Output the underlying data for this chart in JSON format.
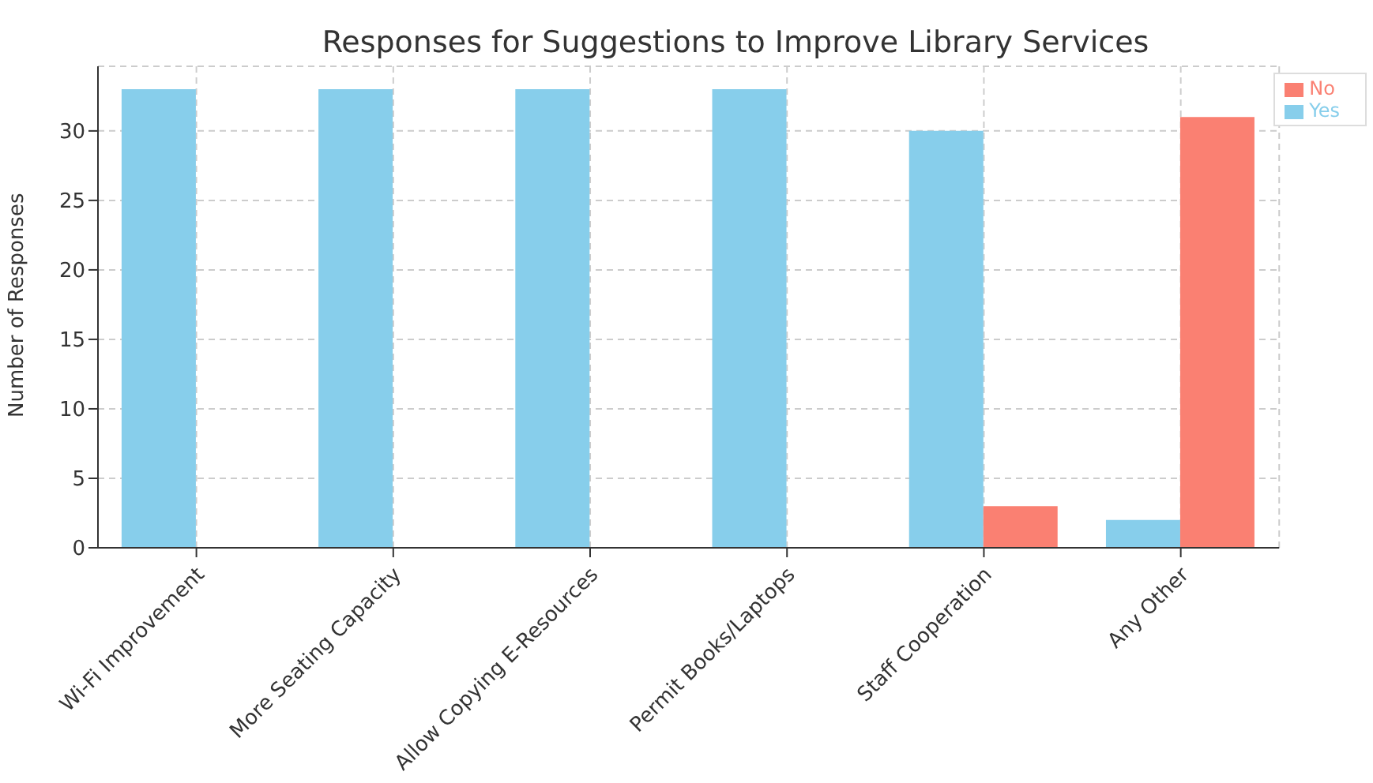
{
  "chart_data": {
    "type": "bar",
    "title": "Responses for Suggestions to Improve Library Services",
    "ylabel": "Number of Responses",
    "categories": [
      "Wi-Fi Improvement",
      "More Seating Capacity",
      "Allow Copying E-Resources",
      "Permit Books/Laptops",
      "Staff Cooperation",
      "Any Other"
    ],
    "series": [
      {
        "name": "Yes",
        "color": "#87ceeb",
        "values": [
          33,
          33,
          33,
          33,
          30,
          2
        ]
      },
      {
        "name": "No",
        "color": "#fa8072",
        "values": [
          0,
          0,
          0,
          0,
          3,
          31
        ]
      }
    ],
    "ylim": [
      0,
      34.65
    ],
    "yticks": [
      0,
      5,
      10,
      15,
      20,
      25,
      30
    ],
    "grid": true,
    "legend": "top right"
  }
}
